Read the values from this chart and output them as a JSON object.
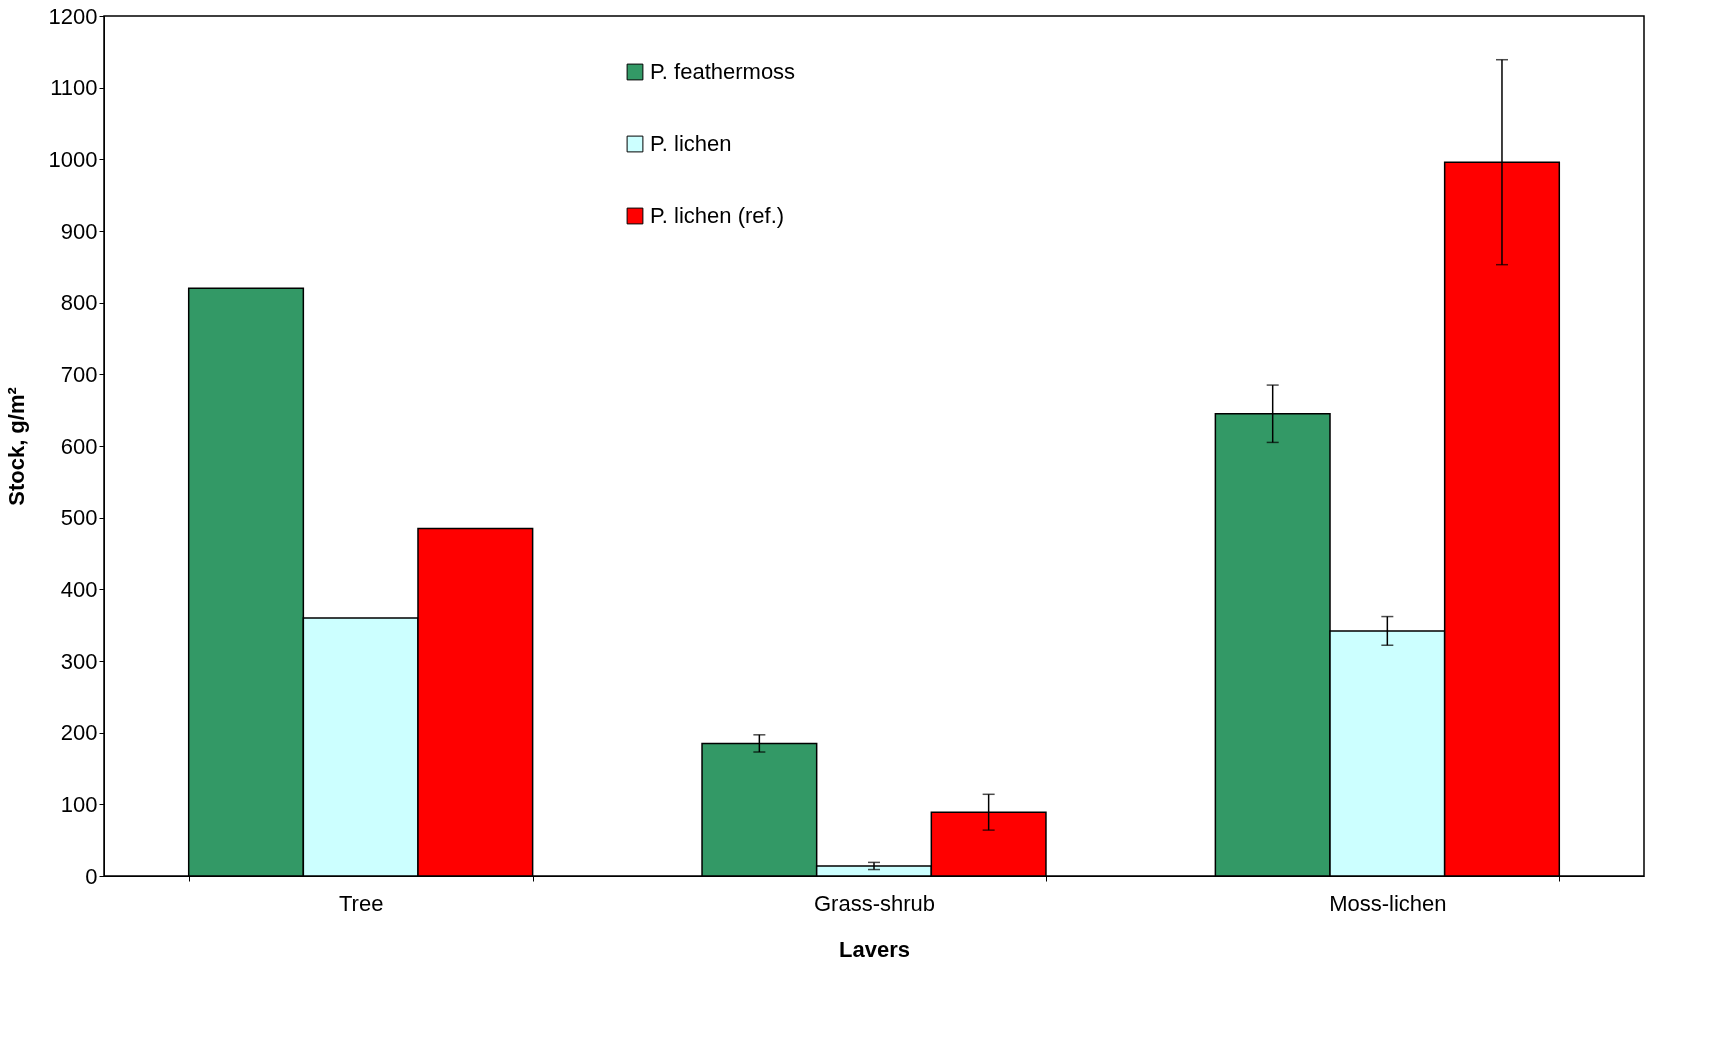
{
  "chart_data": {
    "type": "bar",
    "xlabel": "Lavers",
    "ylabel": "Stock, g/m²",
    "categories": [
      "Tree",
      "Grass-shrub",
      "Moss-lichen"
    ],
    "series": [
      {
        "name": "P. feathermoss",
        "color": "#339966",
        "values": [
          820,
          185,
          645
        ],
        "errors": [
          null,
          12,
          40
        ]
      },
      {
        "name": "P. lichen",
        "color": "#ccffff",
        "values": [
          360,
          14,
          342
        ],
        "errors": [
          null,
          5,
          20
        ]
      },
      {
        "name": "P. lichen (ref.)",
        "color": "#ff0000",
        "values": [
          485,
          89,
          996
        ],
        "errors": [
          null,
          25,
          143
        ]
      }
    ],
    "ylim": [
      0,
      1200
    ],
    "yticks": [
      0,
      100,
      200,
      300,
      400,
      500,
      600,
      700,
      800,
      900,
      1000,
      1100,
      1200
    ],
    "grid": false,
    "legend": "top"
  }
}
